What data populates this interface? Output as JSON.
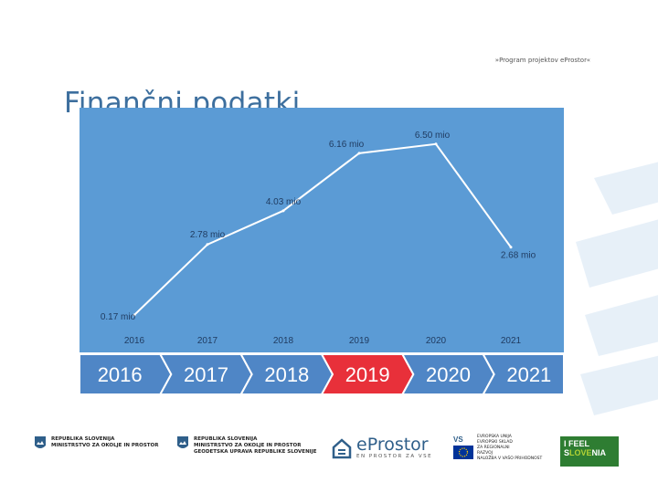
{
  "header": {
    "tagline": "»Program projektov eProstor«",
    "title": "Finančni podatki"
  },
  "chart_data": {
    "type": "line",
    "title": "",
    "xlabel": "",
    "ylabel": "",
    "x": [
      "2016",
      "2017",
      "2018",
      "2019",
      "2020",
      "2021"
    ],
    "series": [
      {
        "values": [
          0.17,
          2.78,
          4.03,
          6.16,
          6.5,
          2.68
        ]
      }
    ],
    "data_labels": [
      "0.17 mio",
      "2.78 mio",
      "4.03 mio",
      "6.16 mio",
      "6.50 mio",
      "2.68 mio"
    ],
    "ylim": [
      0,
      7
    ],
    "grid": false,
    "legend": "none",
    "background_color": "#5b9bd5",
    "line_color": "#ffffff"
  },
  "timeline": {
    "years": [
      "2016",
      "2017",
      "2018",
      "2019",
      "2020",
      "2021"
    ],
    "active_index": 3,
    "colors": {
      "default": "#4f86c6",
      "active": "#e8303a"
    }
  },
  "footer": {
    "ministry_1": [
      "REPUBLIKA SLOVENIJA",
      "MINISTRSTVO ZA OKOLJE IN PROSTOR"
    ],
    "ministry_2": [
      "REPUBLIKA SLOVENIJA",
      "MINISTRSTVO ZA OKOLJE IN PROSTOR",
      "GEODETSKA UPRAVA REPUBLIKE SLOVENIJE"
    ],
    "eprostor_name": "eProstor",
    "eprostor_sub": "EN PROSTOR ZA VSE",
    "eu_text": [
      "EVROPSKA UNIJA",
      "EVROPSKI SKLAD",
      "ZA REGIONALNI",
      "RAZVOJ",
      "NALOŽBA V VAŠO PRIHODNOST"
    ],
    "ifeel_line1": "I FEEL",
    "ifeel_line2_pre": "S",
    "ifeel_line2_hl": "LOVE",
    "ifeel_line2_post": "NIA"
  }
}
